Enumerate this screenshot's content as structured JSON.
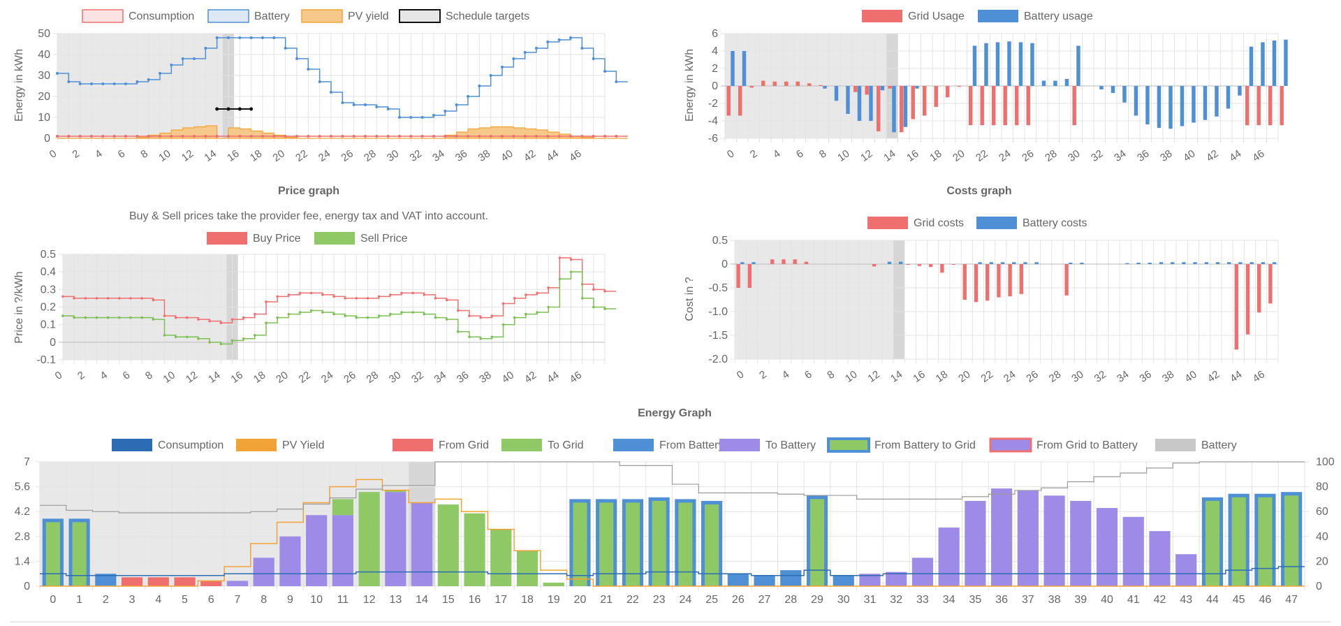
{
  "colors": {
    "red": "#ef6f6f",
    "blue": "#4e8fd6",
    "orange": "#f2a336",
    "green": "#8ec965",
    "purple": "#9e8be8",
    "darkblue": "#2b6cb5",
    "grey": "#c8c8c8",
    "shade": "#e8e8e8"
  },
  "chart_data": [
    {
      "id": "energy_top",
      "type": "line",
      "title": "",
      "ylabel": "Energy in kWh",
      "ylim": [
        0,
        50
      ],
      "yticks": [
        0,
        10,
        20,
        30,
        40,
        50
      ],
      "xticks": [
        "0",
        "2",
        "4",
        "6",
        "8",
        "10",
        "12",
        "14",
        "16",
        "18",
        "20",
        "22",
        "24",
        "26",
        "28",
        "30",
        "32",
        "34",
        "36",
        "38",
        "40",
        "42",
        "44",
        "46"
      ],
      "legend": [
        "Consumption",
        "Battery",
        "PV yield",
        "Schedule targets"
      ],
      "series": [
        {
          "name": "Battery",
          "values": [
            31,
            27,
            26,
            26,
            26,
            26,
            26,
            27,
            28,
            31,
            35,
            38,
            38,
            43,
            48,
            48,
            48,
            48,
            48,
            48,
            43,
            38,
            33,
            27,
            22,
            17,
            16,
            16,
            15,
            14,
            10,
            10,
            10,
            11,
            13,
            16,
            20,
            25,
            30,
            34,
            38,
            41,
            43,
            46,
            47,
            48,
            43,
            38,
            32,
            27
          ]
        },
        {
          "name": "PV yield",
          "values": [
            0,
            0,
            0,
            0,
            0,
            0,
            0,
            0.5,
            1.5,
            2.5,
            4,
            5,
            5.5,
            6,
            0,
            5,
            4.5,
            3.5,
            2.5,
            1.5,
            0.5,
            0,
            0,
            0,
            0,
            0,
            0,
            0,
            0,
            0,
            0,
            0,
            0,
            0,
            1.5,
            3,
            4.5,
            5,
            5.5,
            5.5,
            5,
            4.5,
            4,
            3,
            2,
            1,
            0.5,
            0,
            0,
            0
          ]
        },
        {
          "name": "Consumption",
          "values": [
            1,
            1,
            1,
            1,
            1,
            1,
            1,
            1,
            1,
            1,
            1,
            1,
            1,
            1,
            1,
            1,
            1,
            1,
            1,
            1,
            1,
            1,
            1,
            1,
            1,
            1,
            1,
            1,
            1,
            1,
            1,
            1,
            1,
            1,
            1,
            1,
            1,
            1,
            1,
            1,
            1,
            1,
            1,
            1,
            1,
            1,
            1,
            1,
            1,
            1
          ]
        },
        {
          "name": "Schedule targets",
          "x": [
            14,
            15,
            16,
            17
          ],
          "values": [
            14,
            14,
            14,
            14
          ]
        }
      ]
    },
    {
      "id": "grid_batt",
      "type": "bar",
      "title": "",
      "ylabel": "Energy in kWh",
      "ylim": [
        -6,
        6
      ],
      "yticks": [
        -6,
        -4,
        -2,
        0,
        2,
        4,
        6
      ],
      "xticks": [
        "0",
        "2",
        "4",
        "6",
        "8",
        "10",
        "12",
        "14",
        "16",
        "18",
        "20",
        "22",
        "24",
        "26",
        "28",
        "30",
        "32",
        "34",
        "36",
        "38",
        "40",
        "42",
        "44",
        "46"
      ],
      "legend": [
        "Grid Usage",
        "Battery usage"
      ],
      "series": [
        {
          "name": "Grid Usage",
          "values": [
            -3.4,
            -3.4,
            -0.2,
            0.6,
            0.5,
            0.5,
            0.5,
            0.3,
            0.1,
            0,
            0,
            -0.7,
            -1,
            -5.2,
            -0.3,
            -5.3,
            -3.8,
            -3.4,
            -2.4,
            -1.3,
            -0.1,
            -4.5,
            -4.5,
            -4.5,
            -4.5,
            -4.5,
            -4.5,
            0,
            0,
            0,
            -4.5,
            0,
            0,
            0,
            0,
            0,
            0,
            0,
            0,
            0,
            0,
            0,
            0,
            0,
            0,
            -4.5,
            -4.5,
            -4.5,
            -4.5
          ]
        },
        {
          "name": "Battery usage",
          "values": [
            4,
            4,
            0,
            0,
            0,
            0,
            0,
            0,
            -0.3,
            -1.7,
            -3.2,
            -4,
            -4,
            -0.5,
            -5.3,
            -4.7,
            -0.3,
            0,
            0,
            0,
            0,
            4.6,
            4.9,
            5,
            5.1,
            5,
            4.9,
            0.6,
            0.6,
            0.8,
            4.6,
            0,
            -0.4,
            -0.8,
            -1.9,
            -3.4,
            -4.4,
            -4.8,
            -4.9,
            -4.6,
            -4.2,
            -3.9,
            -3.5,
            -2.6,
            -1.1,
            4.5,
            5,
            5.2,
            5.3
          ]
        }
      ]
    },
    {
      "id": "price",
      "type": "line",
      "title": "Price graph",
      "subtitle": "Buy & Sell prices take the provider fee, energy tax and VAT into account.",
      "ylabel": "Price in ?/kWh",
      "ylim": [
        -0.1,
        0.5
      ],
      "yticks": [
        -0.1,
        0,
        0.1,
        0.2,
        0.3,
        0.4,
        0.5
      ],
      "xticks": [
        "0",
        "2",
        "4",
        "6",
        "8",
        "10",
        "12",
        "14",
        "16",
        "18",
        "20",
        "22",
        "24",
        "26",
        "28",
        "30",
        "32",
        "34",
        "36",
        "38",
        "40",
        "42",
        "44",
        "46"
      ],
      "legend": [
        "Buy Price",
        "Sell Price"
      ],
      "series": [
        {
          "name": "Buy Price",
          "values": [
            0.26,
            0.25,
            0.25,
            0.25,
            0.25,
            0.25,
            0.25,
            0.25,
            0.24,
            0.15,
            0.14,
            0.14,
            0.13,
            0.12,
            0.11,
            0.13,
            0.14,
            0.16,
            0.23,
            0.26,
            0.27,
            0.28,
            0.28,
            0.27,
            0.26,
            0.25,
            0.25,
            0.25,
            0.26,
            0.27,
            0.28,
            0.28,
            0.27,
            0.25,
            0.24,
            0.18,
            0.15,
            0.14,
            0.15,
            0.22,
            0.25,
            0.27,
            0.28,
            0.31,
            0.48,
            0.47,
            0.33,
            0.3,
            0.29
          ]
        },
        {
          "name": "Sell Price",
          "values": [
            0.15,
            0.14,
            0.14,
            0.14,
            0.14,
            0.14,
            0.14,
            0.14,
            0.13,
            0.04,
            0.03,
            0.03,
            0.02,
            0,
            -0.01,
            0.01,
            0.02,
            0.04,
            0.11,
            0.14,
            0.16,
            0.17,
            0.18,
            0.17,
            0.16,
            0.15,
            0.14,
            0.14,
            0.15,
            0.16,
            0.17,
            0.17,
            0.16,
            0.14,
            0.13,
            0.06,
            0.03,
            0.02,
            0.03,
            0.1,
            0.14,
            0.16,
            0.17,
            0.2,
            0.36,
            0.4,
            0.25,
            0.2,
            0.19
          ]
        }
      ]
    },
    {
      "id": "costs",
      "type": "bar",
      "title": "Costs graph",
      "ylabel": "Cost in ?",
      "ylim": [
        -2.0,
        0.5
      ],
      "yticks": [
        -2.0,
        -1.5,
        -1.0,
        -0.5,
        0,
        0.5
      ],
      "xticks": [
        "0",
        "2",
        "4",
        "6",
        "8",
        "10",
        "12",
        "14",
        "16",
        "18",
        "20",
        "22",
        "24",
        "26",
        "28",
        "30",
        "32",
        "34",
        "36",
        "38",
        "40",
        "42",
        "44",
        "46"
      ],
      "legend": [
        "Grid costs",
        "Battery costs"
      ],
      "series": [
        {
          "name": "Grid costs",
          "values": [
            -0.5,
            -0.5,
            0,
            0.1,
            0.1,
            0.1,
            0.05,
            0,
            0,
            0,
            0,
            0,
            -0.05,
            0,
            0,
            -0.01,
            -0.04,
            -0.06,
            -0.18,
            -0.01,
            -0.75,
            -0.8,
            -0.77,
            -0.7,
            -0.68,
            -0.63,
            0,
            0,
            0,
            -0.66,
            0,
            0,
            0,
            0,
            0,
            0,
            0,
            0,
            0,
            0,
            0,
            0,
            0,
            0,
            -1.8,
            -1.48,
            -1.02,
            -0.83
          ]
        },
        {
          "name": "Battery costs",
          "values": [
            0.04,
            0.04,
            0,
            0,
            0,
            0,
            0,
            0,
            0,
            0,
            0,
            0,
            0,
            0.05,
            0.05,
            0,
            0,
            0,
            0,
            0,
            0,
            0.04,
            0.04,
            0.04,
            0.04,
            0.04,
            0.04,
            0,
            0,
            0.03,
            0.03,
            0,
            0,
            0,
            0.02,
            0.03,
            0.03,
            0.04,
            0.04,
            0.04,
            0.04,
            0.04,
            0.04,
            0.04,
            0.04,
            0.04,
            0.04,
            0.04
          ]
        }
      ]
    },
    {
      "id": "energy",
      "type": "bar",
      "title": "Energy Graph",
      "ylim": [
        0,
        7
      ],
      "yticks": [
        "0",
        "1.4",
        "2.8",
        "4.2",
        "5.6",
        "7"
      ],
      "y2lim": [
        0,
        100
      ],
      "y2ticks": [
        "0",
        "20",
        "40",
        "60",
        "80",
        "100"
      ],
      "xticks": [
        "0",
        "1",
        "2",
        "3",
        "4",
        "5",
        "6",
        "7",
        "8",
        "9",
        "10",
        "11",
        "12",
        "13",
        "14",
        "15",
        "16",
        "17",
        "18",
        "19",
        "20",
        "21",
        "22",
        "23",
        "24",
        "25",
        "26",
        "27",
        "28",
        "29",
        "30",
        "31",
        "32",
        "33",
        "34",
        "35",
        "36",
        "37",
        "38",
        "39",
        "40",
        "41",
        "42",
        "43",
        "44",
        "45",
        "46",
        "47"
      ],
      "legend": [
        "Consumption",
        "PV Yield",
        "From Grid",
        "To Grid",
        "From Battery",
        "To Battery",
        "From Battery to Grid",
        "From Grid to Battery",
        "Battery"
      ],
      "series": [
        {
          "name": "Consumption",
          "values": [
            0.7,
            0.6,
            0.6,
            0.6,
            0.6,
            0.6,
            0.6,
            0.7,
            0.7,
            0.7,
            0.7,
            0.7,
            0.8,
            0.8,
            0.8,
            0.8,
            0.8,
            0.7,
            0.7,
            0.7,
            0.6,
            0.7,
            0.7,
            0.8,
            0.8,
            0.7,
            0.7,
            0.6,
            0.6,
            0.9,
            0.6,
            0.6,
            0.7,
            0.7,
            0.7,
            0.7,
            0.7,
            0.7,
            0.7,
            0.7,
            0.7,
            0.7,
            0.7,
            0.7,
            0.7,
            0.9,
            1.0,
            1.1
          ]
        },
        {
          "name": "PV Yield",
          "values": [
            0,
            0,
            0,
            0,
            0,
            0,
            0.3,
            1.1,
            2.4,
            3.6,
            4.7,
            5.6,
            6.0,
            5.4,
            4.7,
            4.9,
            4.2,
            3.2,
            2.0,
            0.9,
            0.4,
            0,
            0,
            0,
            0,
            0,
            0,
            0,
            0,
            0,
            0,
            0,
            0,
            0,
            0,
            0,
            0,
            0,
            0,
            0,
            0,
            0,
            0,
            0,
            0,
            0,
            0,
            0
          ]
        },
        {
          "name": "From Grid",
          "values": [
            0,
            0,
            0,
            0.5,
            0.5,
            0.5,
            0.3,
            0,
            0,
            0,
            0,
            0,
            0,
            0,
            0,
            0,
            0,
            0,
            0,
            0,
            0,
            0,
            0,
            0,
            0,
            0,
            0,
            0,
            0,
            0,
            0,
            0.3,
            0.7,
            1.5,
            2.6,
            3.9,
            5.5,
            5.4,
            5.1,
            4.8,
            4.4,
            3.9,
            3.1,
            1.8,
            0,
            0,
            0,
            0
          ]
        },
        {
          "name": "To Grid",
          "values": [
            0,
            0,
            0,
            0,
            0,
            0,
            0,
            0,
            0,
            0,
            0,
            0.9,
            5.3,
            0.1,
            0,
            4.6,
            4.1,
            3.2,
            2.0,
            0.2,
            0,
            0,
            0,
            0,
            0,
            0,
            0,
            0,
            0,
            0,
            0,
            0,
            0,
            0,
            0,
            0,
            0,
            0,
            0,
            0,
            0,
            0,
            0,
            0,
            0,
            0,
            0,
            0
          ]
        },
        {
          "name": "From Battery",
          "values": [
            0.7,
            0.6,
            0.7,
            0,
            0,
            0,
            0,
            0,
            0,
            0,
            0,
            0,
            0,
            0,
            0,
            0,
            0,
            0,
            0,
            0,
            0,
            0,
            0,
            0,
            0,
            0,
            0.7,
            0.6,
            0.9,
            0,
            0.6,
            0,
            0,
            0,
            0,
            0,
            0,
            0,
            0,
            0,
            0,
            0,
            0,
            0,
            0,
            0,
            0,
            0
          ]
        },
        {
          "name": "To Battery",
          "values": [
            0,
            0,
            0,
            0,
            0,
            0,
            0,
            0.3,
            1.6,
            2.8,
            4.0,
            4.0,
            0,
            5.3,
            4.7,
            0,
            0,
            0,
            0,
            0,
            0,
            0,
            0,
            0,
            0,
            0,
            0,
            0,
            0,
            0,
            0,
            0.7,
            0.8,
            1.6,
            3.3,
            4.8,
            5.5,
            5.4,
            5.1,
            4.8,
            4.4,
            3.9,
            3.1,
            1.8,
            0,
            0,
            0,
            0
          ]
        },
        {
          "name": "From Battery to Grid",
          "values": [
            3.8,
            3.8,
            0,
            0,
            0,
            0,
            0,
            0,
            0,
            0,
            0,
            0,
            0,
            0,
            0,
            0,
            0,
            0,
            0,
            0,
            4.9,
            4.9,
            4.9,
            5.0,
            4.9,
            4.8,
            0,
            0,
            0,
            5.1,
            0,
            0,
            0,
            0,
            0,
            0,
            0,
            0,
            0,
            0,
            0,
            0,
            0,
            0,
            5.0,
            5.2,
            5.2,
            5.3
          ]
        },
        {
          "name": "Battery",
          "values": [
            65,
            61,
            60,
            59,
            59,
            59,
            59,
            59,
            60,
            62,
            66,
            71,
            78,
            81,
            81,
            100,
            100,
            100,
            100,
            100,
            100,
            100,
            97,
            97,
            82,
            75,
            75,
            75,
            74,
            73,
            73,
            70,
            70,
            70,
            70,
            72,
            74,
            77,
            79,
            84,
            88,
            91,
            95,
            99,
            100,
            100,
            100,
            100
          ]
        }
      ]
    }
  ]
}
